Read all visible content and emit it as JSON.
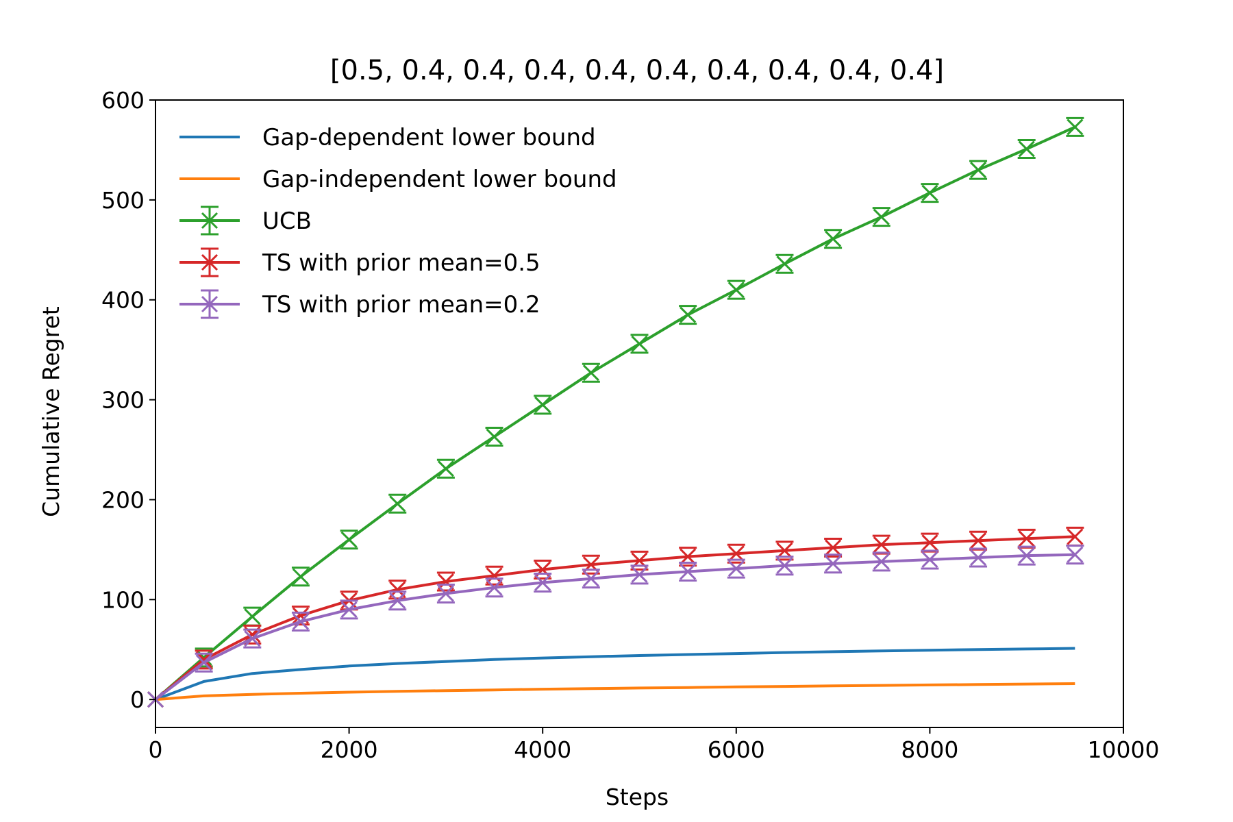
{
  "chart_data": {
    "type": "line",
    "title": "[0.5, 0.4, 0.4, 0.4, 0.4, 0.4, 0.4, 0.4, 0.4, 0.4]",
    "xlabel": "Steps",
    "ylabel": "Cumulative Regret",
    "xlim": [
      0,
      10000
    ],
    "ylim": [
      -28,
      600
    ],
    "xticks": [
      0,
      2000,
      4000,
      6000,
      8000,
      10000
    ],
    "yticks": [
      0,
      100,
      200,
      300,
      400,
      500,
      600
    ],
    "grid": false,
    "legend_position": "upper-left",
    "x": [
      0,
      500,
      1000,
      1500,
      2000,
      2500,
      3000,
      3500,
      4000,
      4500,
      5000,
      5500,
      6000,
      6500,
      7000,
      7500,
      8000,
      8500,
      9000,
      9500
    ],
    "series": [
      {
        "name": "Gap-dependent lower bound",
        "color": "#1f77b4",
        "marker": "none",
        "values": [
          0,
          18,
          26,
          30,
          33.5,
          36,
          38,
          40,
          41.5,
          42.8,
          44,
          45,
          46,
          47,
          47.8,
          48.6,
          49.3,
          50,
          50.6,
          51.2
        ]
      },
      {
        "name": "Gap-independent lower bound",
        "color": "#ff7f0e",
        "marker": "none",
        "values": [
          0,
          3.6,
          5.1,
          6.3,
          7.3,
          8.1,
          8.9,
          9.6,
          10.3,
          10.9,
          11.5,
          12.0,
          12.6,
          13.1,
          13.6,
          14.1,
          14.6,
          15.0,
          15.5,
          15.9
        ]
      },
      {
        "name": "UCB",
        "color": "#2ca02c",
        "marker": "x",
        "errorbars": true,
        "values": [
          0,
          42,
          83,
          123,
          160,
          196,
          231,
          263,
          295,
          327,
          356,
          385,
          410,
          436,
          461,
          483,
          507,
          530,
          551,
          573
        ]
      },
      {
        "name": "TS with prior mean=0.5",
        "color": "#d62728",
        "marker": "x",
        "errorbars": true,
        "values": [
          0,
          40,
          65,
          84,
          99,
          110,
          118,
          124,
          130,
          135,
          139,
          143,
          146,
          149,
          152,
          155,
          157,
          159,
          161,
          163
        ]
      },
      {
        "name": "TS with prior mean=0.2",
        "color": "#9467bd",
        "marker": "x",
        "errorbars": true,
        "values": [
          0,
          37,
          61,
          78,
          90,
          99,
          106,
          112,
          117,
          121,
          125,
          128,
          131,
          134,
          136,
          138,
          140,
          142,
          144,
          145
        ]
      }
    ]
  }
}
